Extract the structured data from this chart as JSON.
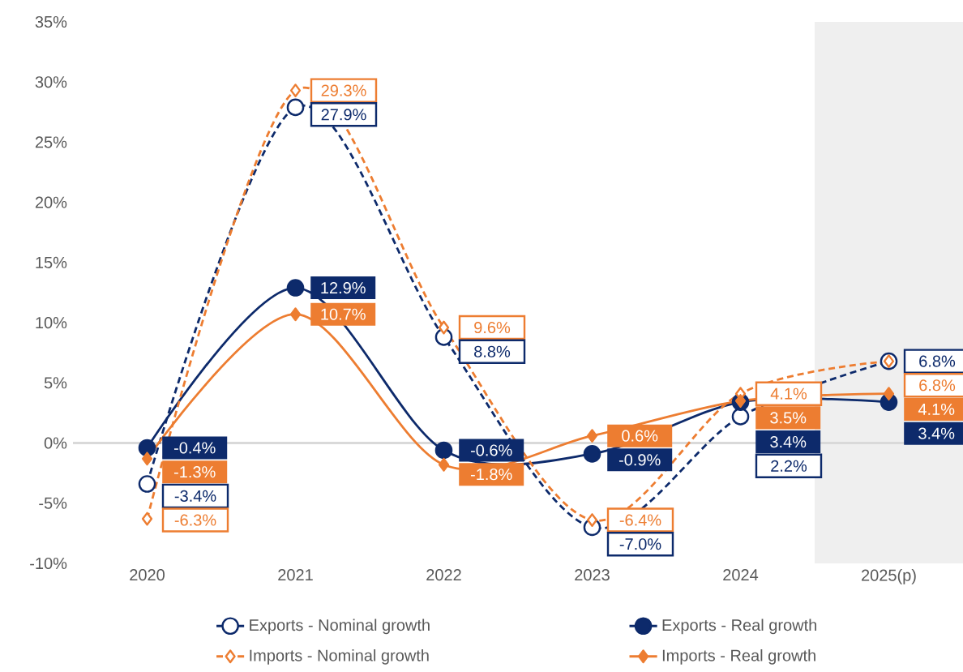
{
  "chart_data": {
    "type": "line",
    "categories": [
      "2020",
      "2021",
      "2022",
      "2023",
      "2024",
      "2025(p)"
    ],
    "series": [
      {
        "name": "Exports - Nominal growth",
        "color": "#0d2a6b",
        "marker": "circle",
        "line_style": "dashed",
        "values": [
          -3.4,
          27.9,
          8.8,
          -7.0,
          2.2,
          6.8
        ],
        "value_labels": [
          "-3.4%",
          "27.9%",
          "8.8%",
          "-7.0%",
          "2.2%",
          "6.8%"
        ]
      },
      {
        "name": "Exports - Real growth",
        "color": "#0d2a6b",
        "marker": "circle",
        "line_style": "solid",
        "values": [
          -0.4,
          12.9,
          -0.6,
          -0.9,
          3.4,
          3.4
        ],
        "value_labels": [
          "-0.4%",
          "12.9%",
          "-0.6%",
          "-0.9%",
          "3.4%",
          "3.4%"
        ]
      },
      {
        "name": "Imports - Nominal growth",
        "color": "#ed7d31",
        "marker": "diamond",
        "line_style": "dashed",
        "values": [
          -6.3,
          29.3,
          9.6,
          -6.4,
          4.1,
          6.8
        ],
        "value_labels": [
          "-6.3%",
          "29.3%",
          "9.6%",
          "-6.4%",
          "4.1%",
          "6.8%"
        ]
      },
      {
        "name": "Imports - Real growth",
        "color": "#ed7d31",
        "marker": "diamond",
        "line_style": "solid",
        "values": [
          -1.3,
          10.7,
          -1.8,
          0.6,
          3.5,
          4.1
        ],
        "value_labels": [
          "-1.3%",
          "10.7%",
          "-1.8%",
          "0.6%",
          "3.5%",
          "4.1%"
        ]
      }
    ],
    "ylim": [
      -10,
      35
    ],
    "yticks": [
      {
        "value": -10,
        "label": "-10%"
      },
      {
        "value": -5,
        "label": "-5%"
      },
      {
        "value": 0,
        "label": "0%"
      },
      {
        "value": 5,
        "label": "5%"
      },
      {
        "value": 10,
        "label": "10%"
      },
      {
        "value": 15,
        "label": "15%"
      },
      {
        "value": 20,
        "label": "20%"
      },
      {
        "value": 25,
        "label": "25%"
      },
      {
        "value": 30,
        "label": "30%"
      },
      {
        "value": 35,
        "label": "35%"
      }
    ],
    "ref_lines": [
      {
        "axis": "y",
        "value": 0,
        "color": "#d9d9d9"
      }
    ],
    "bands": [
      {
        "axis": "x",
        "from": "2025(p)",
        "to": "2025(p)",
        "color": "#efefef"
      }
    ],
    "grid": false,
    "legend": "bottom"
  }
}
